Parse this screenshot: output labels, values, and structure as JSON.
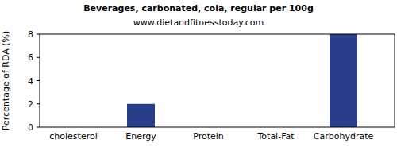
{
  "chart_data": {
    "type": "bar",
    "title": "Beverages, carbonated, cola, regular per 100g",
    "subtitle": "www.dietandfitnesstoday.com",
    "y_label": "Percentage of RDA (%)",
    "categories": [
      "cholesterol",
      "Energy",
      "Protein",
      "Total-Fat",
      "Carbohydrate"
    ],
    "values": [
      0,
      2,
      0,
      0,
      8
    ],
    "color": "#283e8a",
    "ylim": [
      0,
      8
    ],
    "yticks": [
      0,
      2,
      4,
      6,
      8
    ],
    "grid": false
  }
}
